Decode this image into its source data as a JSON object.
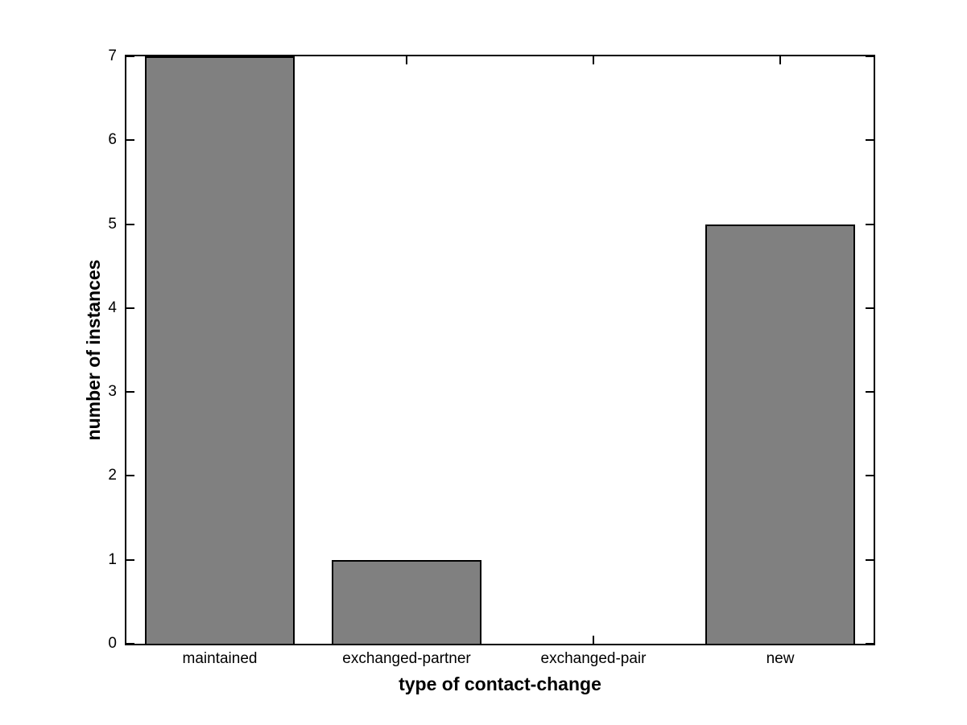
{
  "figure": {
    "background_color": "#ffffff",
    "axis_color": "#000000",
    "bar_fill_color": "#808080",
    "bar_edge_color": "#000000"
  },
  "chart_data": {
    "type": "bar",
    "categories": [
      "maintained",
      "exchanged-partner",
      "exchanged-pair",
      "new"
    ],
    "values": [
      7,
      1,
      0,
      5
    ],
    "title": "",
    "xlabel": "type of contact-change",
    "ylabel": "number of instances",
    "ylim": [
      0,
      7
    ],
    "yticks": [
      0,
      1,
      2,
      3,
      4,
      5,
      6,
      7
    ],
    "bar_width_fraction": 0.8,
    "grid": false,
    "legend": null,
    "tick_direction": "in",
    "box": true
  }
}
